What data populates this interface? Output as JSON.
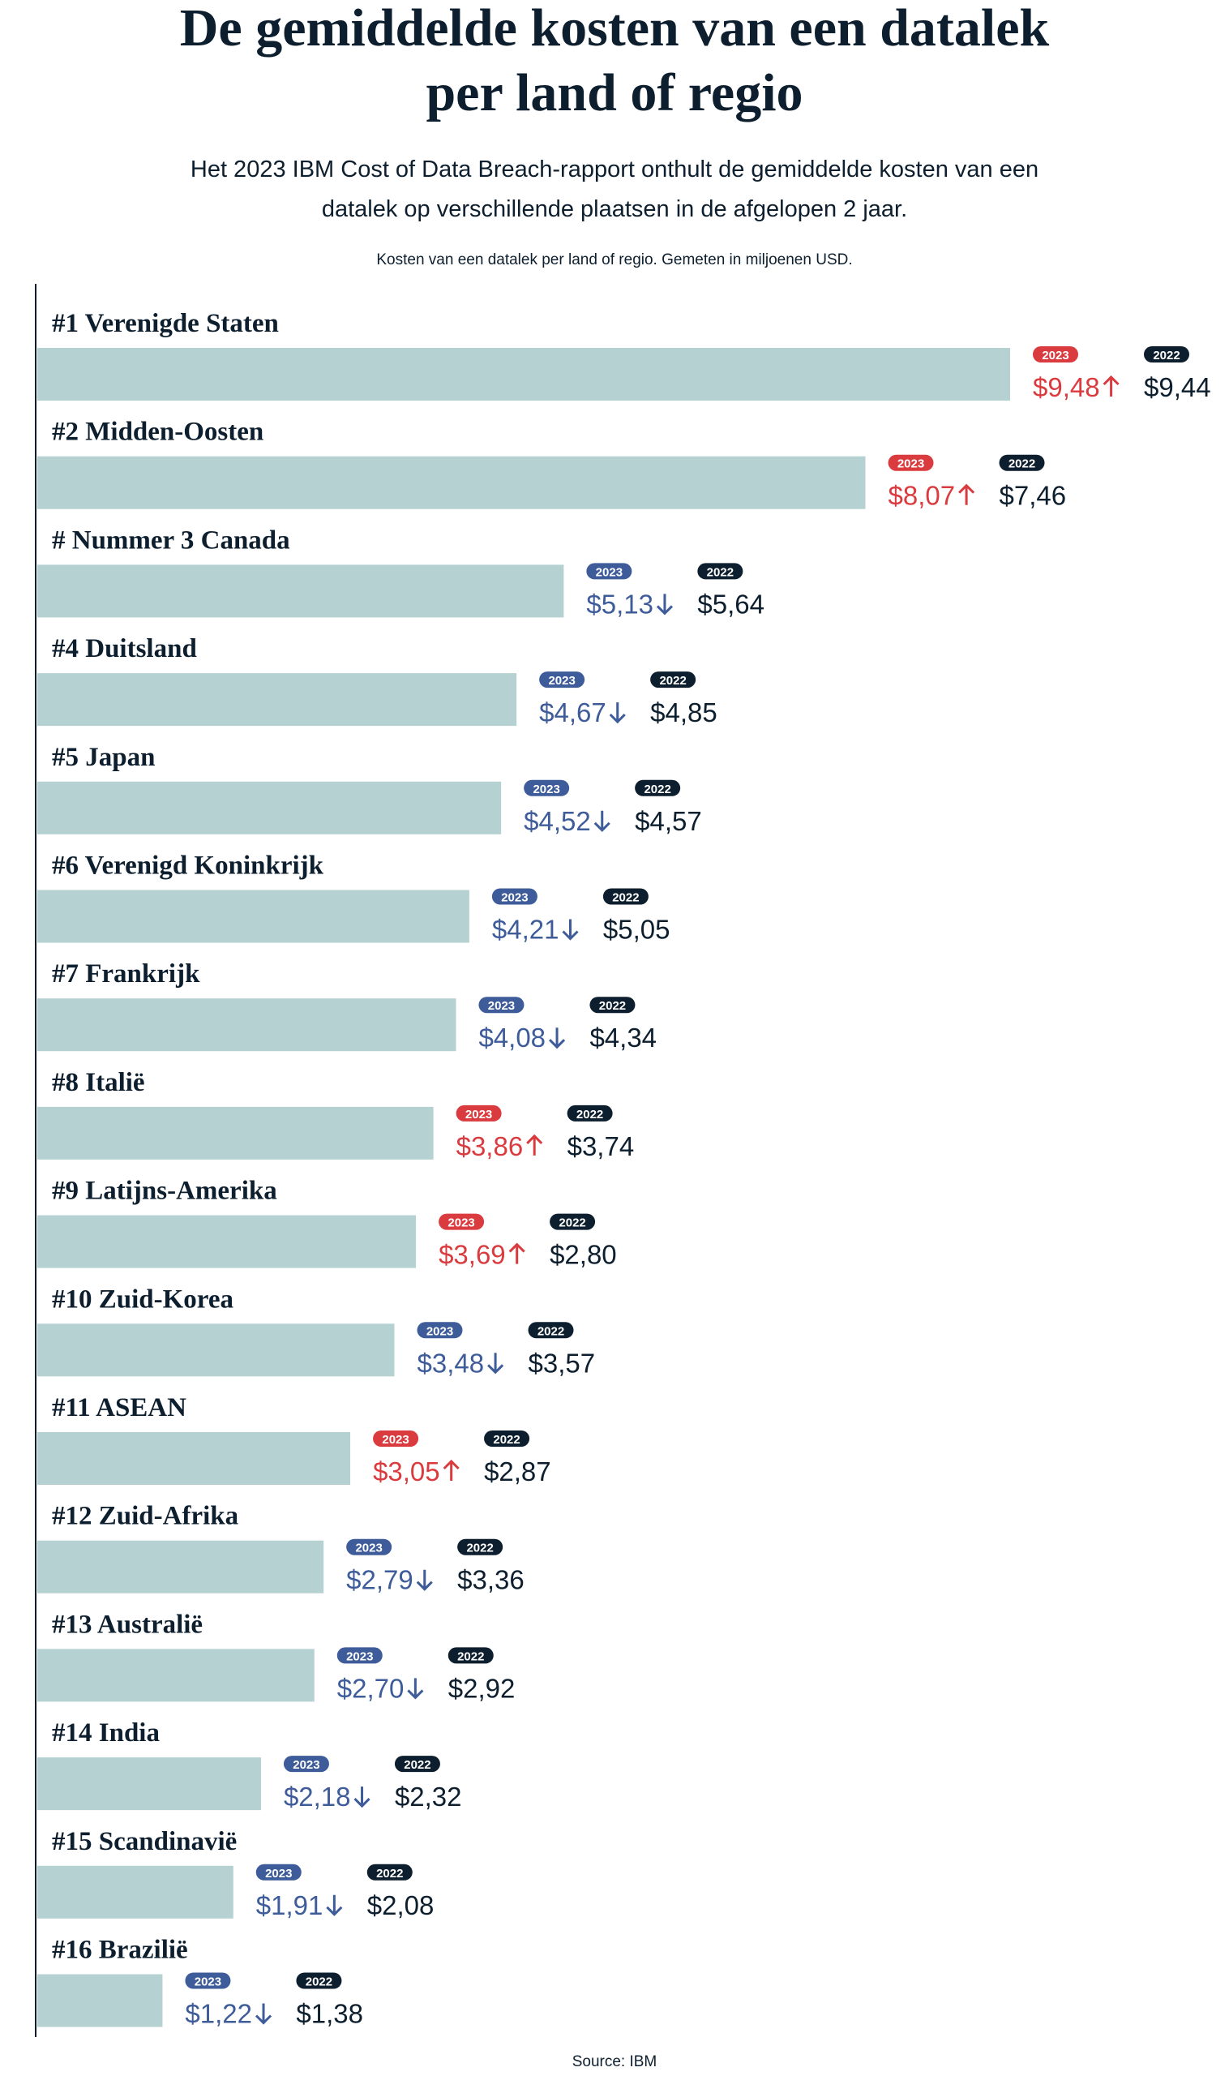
{
  "chart_data": {
    "type": "bar",
    "title": "De gemiddelde kosten van een datalek per land of regio",
    "subtitle": "Het 2023 IBM Cost of Data Breach-rapport onthult de gemiddelde kosten van een datalek op verschillende plaatsen in de afgelopen 2 jaar.",
    "note": "Kosten van een datalek per land of regio. Gemeten in miljoenen USD.",
    "source": "Source: IBM",
    "categories": [
      "#1 Verenigde Staten",
      "#2 Midden-Oosten",
      "# Nummer 3 Canada",
      "#4 Duitsland",
      "#5 Japan",
      "#6 Verenigd Koninkrijk",
      "#7 Frankrijk",
      "#8 Italië",
      "#9 Latijns-Amerika",
      "#10 Zuid-Korea",
      "#11 ASEAN",
      "#12 Zuid-Afrika",
      "#13 Australië",
      "#14 India",
      "#15 Scandinavië",
      "#16 Brazilië"
    ],
    "bar_color": "#b6d1d1",
    "increase_color": "#da3b3f",
    "decrease_color": "#3e5c9a",
    "series": [
      {
        "name": "2023",
        "values": [
          9.48,
          8.07,
          5.13,
          4.67,
          4.52,
          4.21,
          4.08,
          3.86,
          3.69,
          3.48,
          3.05,
          2.79,
          2.7,
          2.18,
          1.91,
          1.22
        ],
        "value_labels": [
          "$9,48",
          "$8,07",
          "$5,13",
          "$4,67",
          "$4,52",
          "$4,21",
          "$4,08",
          "$3,86",
          "$3,69",
          "$3,48",
          "$3,05",
          "$2,79",
          "$2,70",
          "$2,18",
          "$1,91",
          "$1,22"
        ]
      },
      {
        "name": "2022",
        "color": "#0d1f2e",
        "values": [
          9.44,
          7.46,
          5.64,
          4.85,
          4.57,
          5.05,
          4.34,
          3.74,
          2.8,
          3.57,
          2.87,
          3.36,
          2.92,
          2.32,
          2.08,
          1.38
        ],
        "value_labels": [
          "$9,44",
          "$7,46",
          "$5,64",
          "$4,85",
          "$4,57",
          "$5,05",
          "$4,34",
          "$3,74",
          "$2,80",
          "$3,57",
          "$2,87",
          "$3,36",
          "$2,92",
          "$2,32",
          "$2,08",
          "$1,38"
        ]
      }
    ]
  }
}
